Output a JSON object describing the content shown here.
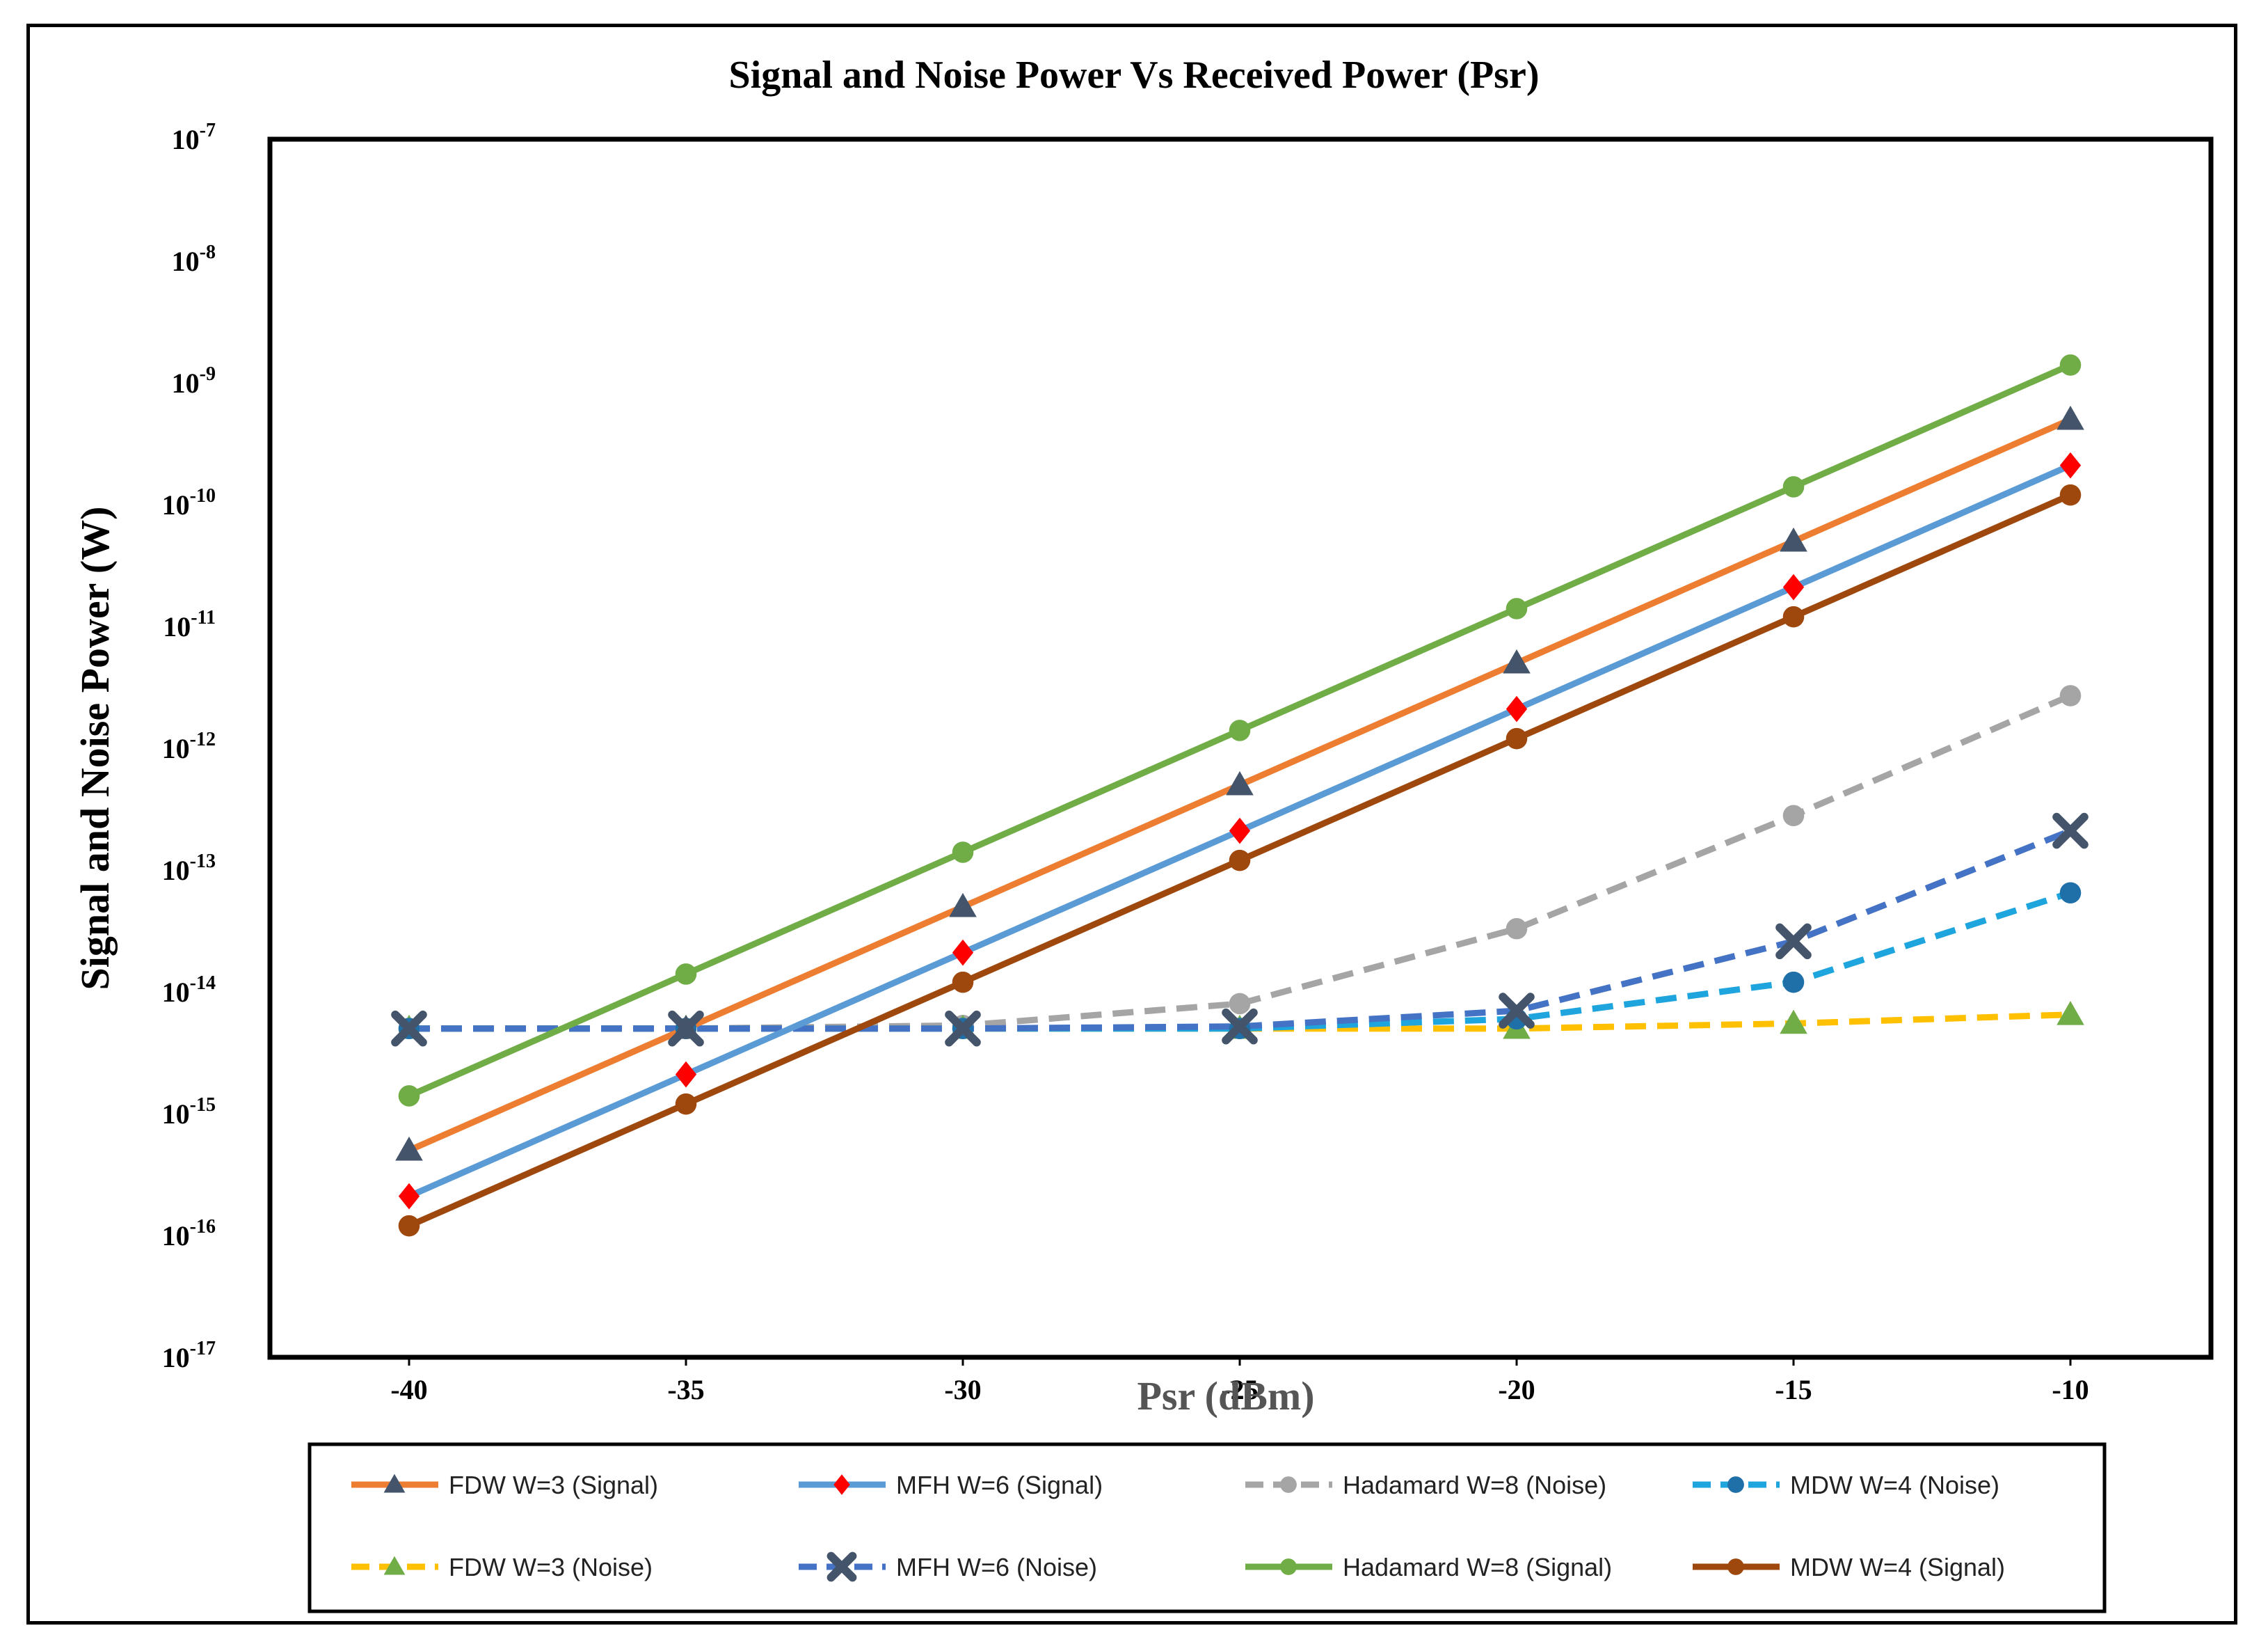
{
  "chart_data": {
    "type": "line",
    "title": "Signal and Noise Power Vs Received Power (Psr)",
    "xlabel": "Psr (dBm)",
    "ylabel": "Signal and Noise Power (W)",
    "yscale": "log",
    "ylim_exp": [
      -17,
      -7
    ],
    "x": [
      -40,
      -35,
      -30,
      -25,
      -20,
      -15,
      -10
    ],
    "x_tick_labels": [
      "-40",
      "-35",
      "-30",
      "-25",
      "-20",
      "-15",
      "-10"
    ],
    "y_ticks": [
      {
        "base": "10",
        "exp": "-7"
      },
      {
        "base": "10",
        "exp": "-8"
      },
      {
        "base": "10",
        "exp": "-9"
      },
      {
        "base": "10",
        "exp": "-10"
      },
      {
        "base": "10",
        "exp": "-11"
      },
      {
        "base": "10",
        "exp": "-12"
      },
      {
        "base": "10",
        "exp": "-13"
      },
      {
        "base": "10",
        "exp": "-14"
      },
      {
        "base": "10",
        "exp": "-15"
      },
      {
        "base": "10",
        "exp": "-16"
      },
      {
        "base": "10",
        "exp": "-17"
      }
    ],
    "series": [
      {
        "name": "Hadamard W=8 (Noise)",
        "color": "#a5a5a5",
        "dashed": true,
        "marker": "circle",
        "marker_color": "#a5a5a5",
        "values": [
          5e-15,
          5e-15,
          5.3e-15,
          8e-15,
          3.3e-14,
          2.8e-13,
          2.7e-12
        ]
      },
      {
        "name": "FDW  W=3 (Noise)",
        "color": "#ffc000",
        "dashed": true,
        "marker": "triangle",
        "marker_color": "#70ad47",
        "values": [
          5e-15,
          5e-15,
          5e-15,
          5e-15,
          5e-15,
          5.5e-15,
          6.5e-15
        ]
      },
      {
        "name": "MDW W=4 (Noise)",
        "color": "#1fa5de",
        "dashed": true,
        "marker": "circle",
        "marker_color": "#1f6fa8",
        "values": [
          5e-15,
          5e-15,
          5e-15,
          5e-15,
          6e-15,
          1.2e-14,
          6.5e-14
        ]
      },
      {
        "name": "MFH W=6 (Noise)",
        "color": "#4472c4",
        "dashed": true,
        "marker": "x",
        "marker_color": "#44546a",
        "values": [
          5e-15,
          5e-15,
          5e-15,
          5.2e-15,
          7e-15,
          2.6e-14,
          2.1e-13
        ]
      },
      {
        "name": "Hadamard W=8 (Signal)",
        "color": "#70ad47",
        "dashed": false,
        "marker": "circle",
        "marker_color": "#70ad47",
        "values": [
          1.4e-15,
          1.4e-14,
          1.4e-13,
          1.4e-12,
          1.4e-11,
          1.4e-10,
          1.4e-09
        ]
      },
      {
        "name": "FDW  W=3 (Signal)",
        "color": "#ed7d31",
        "dashed": false,
        "marker": "triangle",
        "marker_color": "#44546a",
        "values": [
          5e-16,
          5e-15,
          5e-14,
          5e-13,
          5e-12,
          5e-11,
          5e-10
        ]
      },
      {
        "name": "MFH W=6 (Signal)",
        "color": "#5b9bd5",
        "dashed": false,
        "marker": "diamond",
        "marker_color": "#ff0000",
        "values": [
          2.1e-16,
          2.1e-15,
          2.1e-14,
          2.1e-13,
          2.1e-12,
          2.1e-11,
          2.1e-10
        ]
      },
      {
        "name": "MDW W=4 (Signal)",
        "color": "#9e480e",
        "dashed": false,
        "marker": "circle",
        "marker_color": "#9e480e",
        "values": [
          1.2e-16,
          1.2e-15,
          1.2e-14,
          1.2e-13,
          1.2e-12,
          1.2e-11,
          1.2e-10
        ]
      }
    ],
    "legend_order": [
      "FDW  W=3 (Signal)",
      "MFH W=6 (Signal)",
      "Hadamard W=8 (Noise)",
      "MDW W=4 (Noise)",
      "FDW  W=3 (Noise)",
      "MFH W=6 (Noise)",
      "Hadamard W=8 (Signal)",
      "MDW W=4 (Signal)"
    ],
    "legend_position": "bottom"
  }
}
